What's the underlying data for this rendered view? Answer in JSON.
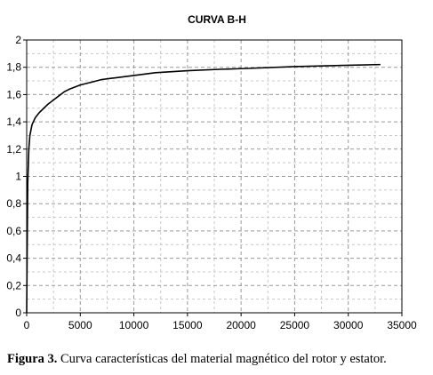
{
  "caption": {
    "label": "Figura 3.",
    "text": "Curva características del material magnético del rotor y estator."
  },
  "chart_data": {
    "type": "line",
    "title": "CURVA B-H",
    "xlabel": "",
    "ylabel": "",
    "xlim": [
      0,
      35000
    ],
    "ylim": [
      0,
      2
    ],
    "x_ticks": [
      0,
      5000,
      10000,
      15000,
      20000,
      25000,
      30000,
      35000
    ],
    "x_tick_labels": [
      "0",
      "5000",
      "10000",
      "15000",
      "20000",
      "25000",
      "30000",
      "35000"
    ],
    "y_ticks": [
      0,
      0.2,
      0.4,
      0.6,
      0.8,
      1,
      1.2,
      1.4,
      1.6,
      1.8,
      2
    ],
    "y_tick_labels": [
      "0",
      "0,2",
      "0,4",
      "0,6",
      "0,8",
      "1",
      "1,2",
      "1,4",
      "1,6",
      "1,8",
      "2"
    ],
    "grid": true,
    "series": [
      {
        "name": "",
        "color": "#000000",
        "x": [
          0,
          50,
          100,
          200,
          300,
          500,
          800,
          1200,
          1600,
          2000,
          2500,
          3000,
          3500,
          4000,
          5000,
          6000,
          7000,
          8000,
          10000,
          12000,
          15000,
          18000,
          20000,
          25000,
          30000,
          33000
        ],
        "y": [
          0,
          0.5,
          0.95,
          1.2,
          1.3,
          1.38,
          1.43,
          1.47,
          1.5,
          1.53,
          1.56,
          1.59,
          1.62,
          1.64,
          1.67,
          1.69,
          1.71,
          1.72,
          1.74,
          1.76,
          1.775,
          1.785,
          1.79,
          1.805,
          1.815,
          1.82
        ]
      }
    ]
  }
}
